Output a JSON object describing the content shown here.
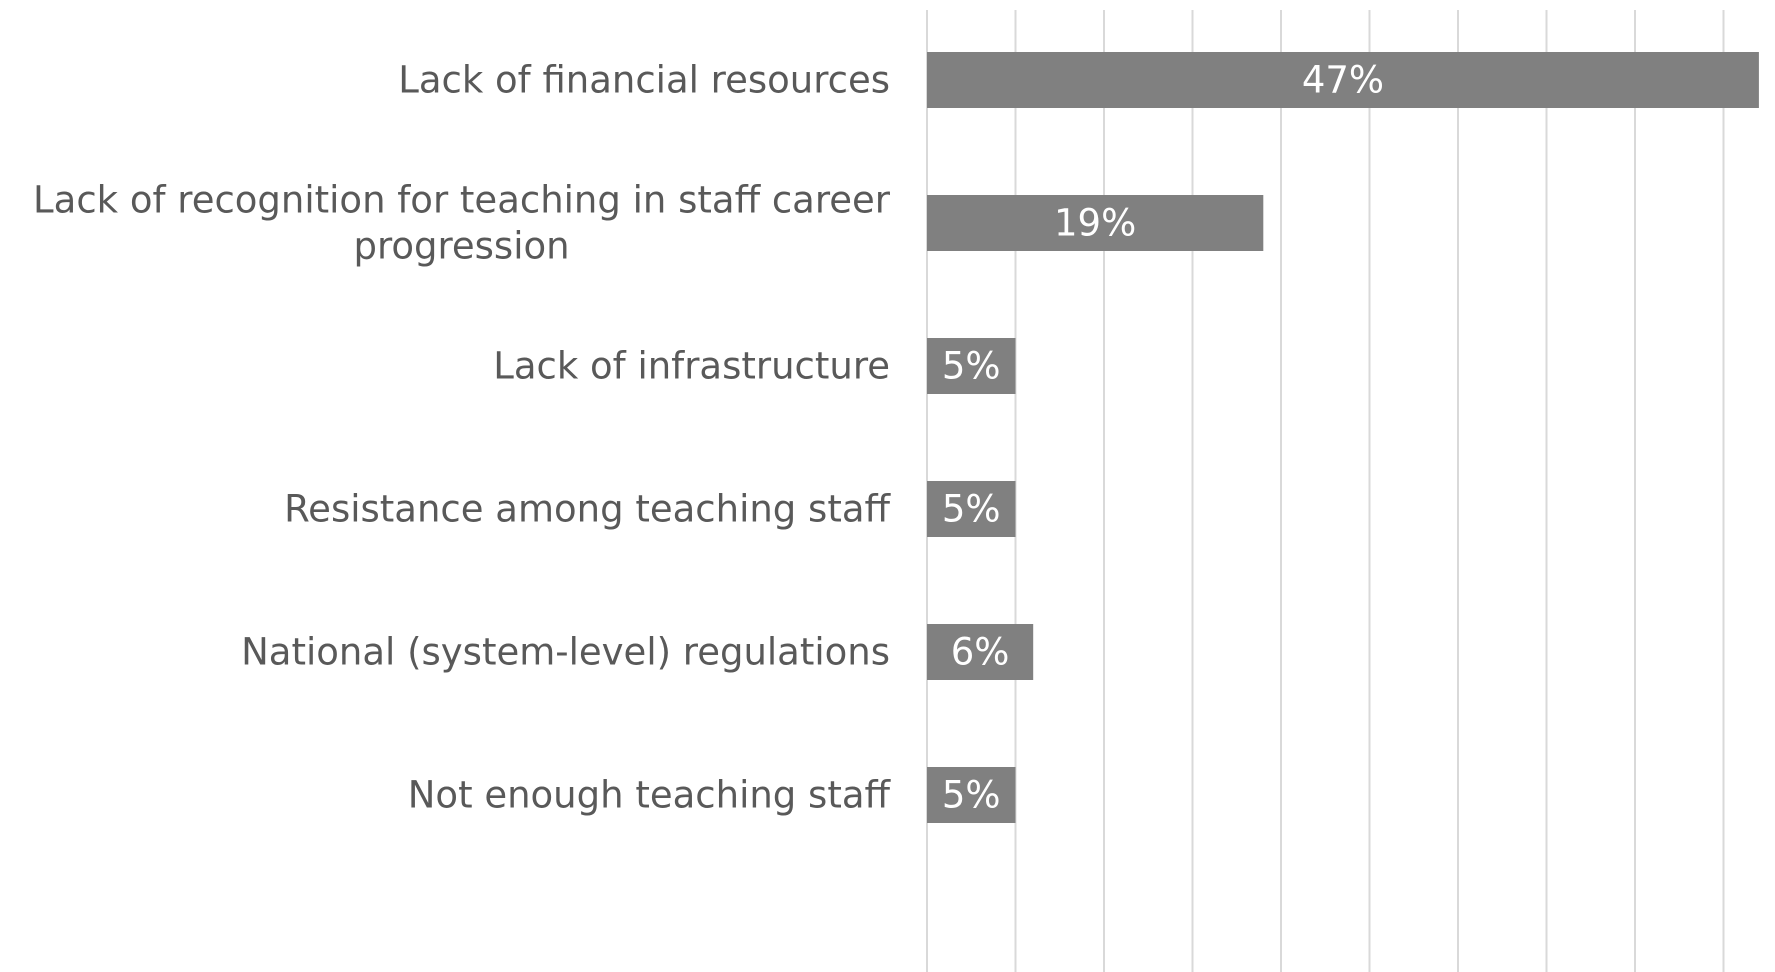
{
  "chart_data": {
    "type": "bar",
    "orientation": "horizontal",
    "categories": [
      "Lack of financial resources",
      "Lack of recognition for teaching in staff career progression",
      "Lack of infrastructure",
      "Resistance among teaching staff",
      "National (system-level) regulations",
      "Not enough teaching staff"
    ],
    "category_lines": [
      [
        "Lack of financial resources"
      ],
      [
        "Lack of recognition for teaching in staff career",
        "progression"
      ],
      [
        "Lack of infrastructure"
      ],
      [
        "Resistance among teaching staff"
      ],
      [
        "National (system-level) regulations"
      ],
      [
        "Not enough teaching staff"
      ]
    ],
    "values": [
      47,
      19,
      5,
      5,
      6,
      5
    ],
    "data_labels": [
      "47%",
      "19%",
      "5%",
      "5%",
      "6%",
      "5%"
    ],
    "xlim": [
      0,
      45
    ],
    "grid_step": 5,
    "grid": true,
    "legend": "none",
    "bar_color": "#808080",
    "gridline_color": "#d9d9d9",
    "category_label_color": "#595959",
    "data_label_color": "#ffffff"
  }
}
